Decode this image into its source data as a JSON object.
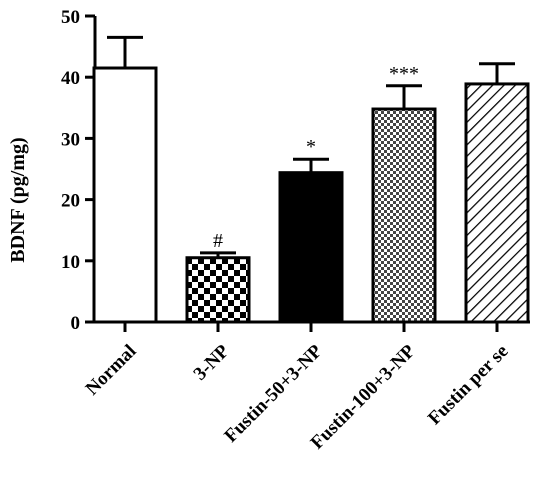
{
  "chart_data": {
    "type": "bar",
    "title": "",
    "xlabel": "",
    "ylabel": "BDNF (pg/mg)",
    "ylim": [
      0,
      50
    ],
    "yticks": [
      0,
      10,
      20,
      30,
      40,
      50
    ],
    "grid": false,
    "categories": [
      "Normal",
      "3-NP",
      "Fustin-50+3-NP",
      "Fustin-100+3-NP",
      "Fustin per se"
    ],
    "values": [
      41.5,
      10.5,
      24.4,
      34.8,
      38.9
    ],
    "errors": [
      5.0,
      0.8,
      2.2,
      3.8,
      3.3
    ],
    "annotations": [
      "",
      "#",
      "*",
      "***",
      ""
    ],
    "fills": [
      "white",
      "checker",
      "black",
      "fine-checker",
      "diagonal-hatch"
    ]
  }
}
